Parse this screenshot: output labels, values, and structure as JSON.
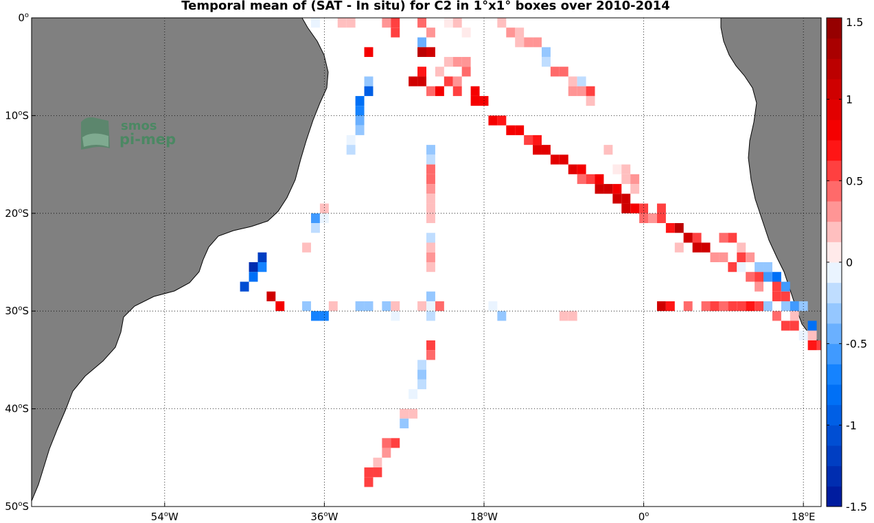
{
  "title": "Temporal mean of (SAT - In situ) for C2 in 1°x1° boxes over 2010-2014",
  "map": {
    "lon_range": [
      -69,
      20
    ],
    "lat_range": [
      -50,
      0
    ],
    "land_color": "#808080",
    "ocean_color": "#ffffff",
    "grid_style": "dotted",
    "lon_ticks": [
      {
        "value": -54,
        "label": "54°W"
      },
      {
        "value": -36,
        "label": "36°W"
      },
      {
        "value": -18,
        "label": "18°W"
      },
      {
        "value": 0,
        "label": "0°"
      },
      {
        "value": 18,
        "label": "18°E"
      }
    ],
    "lat_ticks": [
      {
        "value": 0,
        "label": "0°"
      },
      {
        "value": -10,
        "label": "10°S"
      },
      {
        "value": -20,
        "label": "20°S"
      },
      {
        "value": -30,
        "label": "30°S"
      },
      {
        "value": -40,
        "label": "40°S"
      },
      {
        "value": -50,
        "label": "50°S"
      }
    ]
  },
  "colorbar": {
    "range": [
      -1.5,
      1.5
    ],
    "levels": 24,
    "ticks": [
      {
        "value": 1.5,
        "label": "1.5"
      },
      {
        "value": 1,
        "label": "1"
      },
      {
        "value": 0.5,
        "label": "0.5"
      },
      {
        "value": 0,
        "label": "0"
      },
      {
        "value": -0.5,
        "label": "-0.5"
      },
      {
        "value": -1,
        "label": "-1"
      },
      {
        "value": -1.5,
        "label": "-1.5"
      }
    ]
  },
  "logo": {
    "line1": "smos",
    "line2": "pi-mep",
    "color": "#3e8a5c"
  },
  "chart_data": {
    "type": "heatmap",
    "variable": "SAT - In situ",
    "cells": [
      [
        -37,
        -0.5,
        -0.1
      ],
      [
        -34,
        -0.5,
        0.2
      ],
      [
        -33,
        -0.5,
        0.2
      ],
      [
        -29,
        -0.5,
        0.3
      ],
      [
        -28,
        -0.5,
        0.5
      ],
      [
        -25,
        -0.5,
        0.4
      ],
      [
        -16,
        -0.5,
        0.2
      ],
      [
        -22,
        -0.5,
        0.1
      ],
      [
        -21,
        -0.5,
        0.2
      ],
      [
        -28,
        -1.5,
        0.5
      ],
      [
        -24,
        -1.5,
        0.3
      ],
      [
        -14,
        -1.5,
        0.2
      ],
      [
        -15,
        -1.5,
        0.3
      ],
      [
        -25,
        -2.5,
        -0.5
      ],
      [
        -20,
        -1.5,
        0.1
      ],
      [
        -13,
        -2.5,
        0.3
      ],
      [
        -12,
        -2.5,
        0.3
      ],
      [
        -14,
        -2.5,
        0.2
      ],
      [
        -25,
        -3.5,
        1.2
      ],
      [
        -31,
        -3.5,
        0.8
      ],
      [
        -24,
        -3.5,
        1.0
      ],
      [
        -11,
        -3.5,
        -0.3
      ],
      [
        -11,
        -4.5,
        -0.2
      ],
      [
        -22,
        -4.5,
        0.2
      ],
      [
        -21,
        -4.5,
        0.3
      ],
      [
        -20,
        -4.5,
        0.3
      ],
      [
        -25,
        -5.5,
        0.7
      ],
      [
        -10,
        -5.5,
        0.4
      ],
      [
        -9,
        -5.5,
        0.4
      ],
      [
        -20,
        -5.5,
        0.4
      ],
      [
        -23,
        -5.5,
        0.2
      ],
      [
        -26,
        -6.5,
        1.0
      ],
      [
        -25,
        -6.5,
        1.0
      ],
      [
        -22,
        -6.5,
        0.5
      ],
      [
        -21,
        -6.5,
        0.3
      ],
      [
        -8,
        -6.5,
        0.2
      ],
      [
        -7,
        -6.5,
        -0.2
      ],
      [
        -31,
        -6.5,
        -0.3
      ],
      [
        -24,
        -7.5,
        0.4
      ],
      [
        -23,
        -7.5,
        0.8
      ],
      [
        -21,
        -7.5,
        0.5
      ],
      [
        -19,
        -7.5,
        0.8
      ],
      [
        -8,
        -7.5,
        0.3
      ],
      [
        -7,
        -7.5,
        0.3
      ],
      [
        -6,
        -7.5,
        0.6
      ],
      [
        -31,
        -7.5,
        -0.9
      ],
      [
        -19,
        -8.5,
        0.8
      ],
      [
        -18,
        -8.5,
        0.8
      ],
      [
        -6,
        -8.5,
        0.2
      ],
      [
        -32,
        -8.5,
        -0.8
      ],
      [
        -32,
        -9.5,
        -0.7
      ],
      [
        -17,
        -10.5,
        0.8
      ],
      [
        -16,
        -10.5,
        0.7
      ],
      [
        -32,
        -10.5,
        -0.5
      ],
      [
        -15,
        -11.5,
        0.8
      ],
      [
        -14,
        -11.5,
        0.8
      ],
      [
        -32,
        -11.5,
        -0.3
      ],
      [
        -13,
        -12.5,
        0.6
      ],
      [
        -12,
        -12.5,
        0.7
      ],
      [
        -33,
        -12.5,
        -0.1
      ],
      [
        -12,
        -13.5,
        0.9
      ],
      [
        -11,
        -13.5,
        0.9
      ],
      [
        -33,
        -13.5,
        -0.2
      ],
      [
        -24,
        -13.5,
        -0.3
      ],
      [
        -4,
        -13.5,
        0.2
      ],
      [
        -10,
        -14.5,
        0.9
      ],
      [
        -9,
        -14.5,
        0.9
      ],
      [
        -24,
        -14.5,
        -0.2
      ],
      [
        -8,
        -15.5,
        0.9
      ],
      [
        -7,
        -15.5,
        0.8
      ],
      [
        -3,
        -15.5,
        0.1
      ],
      [
        -2,
        -15.5,
        0.2
      ],
      [
        -24,
        -15.5,
        0.4
      ],
      [
        -7,
        -16.5,
        0.4
      ],
      [
        -6,
        -16.5,
        0.5
      ],
      [
        -5,
        -16.5,
        0.8
      ],
      [
        -2,
        -16.5,
        0.2
      ],
      [
        -1,
        -16.5,
        0.3
      ],
      [
        -24,
        -16.5,
        0.4
      ],
      [
        -5,
        -17.5,
        1.0
      ],
      [
        -4,
        -17.5,
        1.0
      ],
      [
        -3,
        -17.5,
        0.8
      ],
      [
        -1,
        -17.5,
        0.2
      ],
      [
        -24,
        -17.5,
        0.3
      ],
      [
        -3,
        -18.5,
        1.0
      ],
      [
        -2,
        -18.5,
        1.0
      ],
      [
        -24,
        -18.5,
        0.2
      ],
      [
        -2,
        -19.5,
        1.0
      ],
      [
        -1,
        -19.5,
        0.8
      ],
      [
        0,
        -19.5,
        0.5
      ],
      [
        2,
        -19.5,
        0.5
      ],
      [
        -24,
        -19.5,
        0.2
      ],
      [
        -36,
        -19.5,
        0.2
      ],
      [
        0,
        -20.5,
        0.4
      ],
      [
        1,
        -20.5,
        0.3
      ],
      [
        2,
        -20.5,
        0.5
      ],
      [
        -24,
        -20.5,
        0.2
      ],
      [
        -37,
        -20.5,
        -0.6
      ],
      [
        -36,
        -20.5,
        -0.1
      ],
      [
        3,
        -21.5,
        0.7
      ],
      [
        4,
        -21.5,
        1.2
      ],
      [
        -37,
        -21.5,
        -0.2
      ],
      [
        5,
        -22.5,
        1.0
      ],
      [
        6,
        -22.5,
        0.5
      ],
      [
        -24,
        -22.5,
        -0.2
      ],
      [
        5,
        -22.5,
        1.0
      ],
      [
        9,
        -22.5,
        0.4
      ],
      [
        10,
        -22.5,
        0.5
      ],
      [
        6,
        -23.5,
        1.0
      ],
      [
        7,
        -23.5,
        1.0
      ],
      [
        -24,
        -23.5,
        0.2
      ],
      [
        11,
        -23.5,
        0.2
      ],
      [
        4,
        -23.5,
        0.2
      ],
      [
        -38,
        -23.5,
        0.2
      ],
      [
        8,
        -24.5,
        0.3
      ],
      [
        9,
        -24.5,
        0.3
      ],
      [
        11,
        -24.5,
        0.5
      ],
      [
        12,
        -24.5,
        0.3
      ],
      [
        -24,
        -24.5,
        0.3
      ],
      [
        -43,
        -24.5,
        -1.2
      ],
      [
        10,
        -25.5,
        0.6
      ],
      [
        11,
        -25.5,
        -0.1
      ],
      [
        13,
        -25.5,
        -0.3
      ],
      [
        14,
        -25.5,
        -0.3
      ],
      [
        -24,
        -25.5,
        0.2
      ],
      [
        -44,
        -25.5,
        -1.3
      ],
      [
        -43,
        -25.5,
        -0.7
      ],
      [
        12,
        -26.5,
        0.4
      ],
      [
        13,
        -26.5,
        0.6
      ],
      [
        14,
        -26.5,
        -0.6
      ],
      [
        15,
        -26.5,
        -0.8
      ],
      [
        -44,
        -26.5,
        -0.8
      ],
      [
        13,
        -27.5,
        0.3
      ],
      [
        15,
        -27.5,
        0.5
      ],
      [
        16,
        -27.5,
        -0.6
      ],
      [
        -45,
        -27.5,
        -1.1
      ],
      [
        15,
        -28.5,
        0.5
      ],
      [
        16,
        -28.5,
        0.5
      ],
      [
        -42,
        -28.5,
        1.0
      ],
      [
        -24,
        -28.5,
        -0.3
      ],
      [
        2,
        -29.5,
        1.0
      ],
      [
        3,
        -29.5,
        0.7
      ],
      [
        5,
        -29.5,
        0.4
      ],
      [
        7,
        -29.5,
        0.4
      ],
      [
        8,
        -29.5,
        0.6
      ],
      [
        9,
        -29.5,
        0.4
      ],
      [
        10,
        -29.5,
        0.5
      ],
      [
        11,
        -29.5,
        0.5
      ],
      [
        12,
        -29.5,
        0.7
      ],
      [
        13,
        -29.5,
        0.5
      ],
      [
        14,
        -29.5,
        -0.3
      ],
      [
        16,
        -29.5,
        -0.3
      ],
      [
        17,
        -29.5,
        -0.6
      ],
      [
        18,
        -29.5,
        -0.3
      ],
      [
        -41,
        -29.5,
        0.8
      ],
      [
        -38,
        -29.5,
        -0.3
      ],
      [
        -35,
        -29.5,
        0.2
      ],
      [
        -32,
        -29.5,
        -0.3
      ],
      [
        -31,
        -29.5,
        -0.3
      ],
      [
        -29,
        -29.5,
        -0.3
      ],
      [
        -28,
        -29.5,
        0.2
      ],
      [
        -25,
        -29.5,
        0.2
      ],
      [
        -23,
        -29.5,
        0.4
      ],
      [
        -24,
        -29.5,
        -0.1
      ],
      [
        -17,
        -29.5,
        -0.1
      ],
      [
        -37,
        -30.5,
        -0.7
      ],
      [
        -36,
        -30.5,
        -0.7
      ],
      [
        -28,
        -30.5,
        -0.1
      ],
      [
        -24,
        -30.5,
        -0.2
      ],
      [
        -16,
        -30.5,
        -0.3
      ],
      [
        -9,
        -30.5,
        0.2
      ],
      [
        -8,
        -30.5,
        0.2
      ],
      [
        15,
        -30.5,
        0.4
      ],
      [
        17,
        -30.5,
        0.2
      ],
      [
        16,
        -31.5,
        0.5
      ],
      [
        17,
        -31.5,
        0.5
      ],
      [
        19,
        -31.5,
        -0.8
      ],
      [
        18,
        -32.5,
        -0.1
      ],
      [
        19,
        -32.5,
        0.2
      ],
      [
        19,
        -33.5,
        0.7
      ],
      [
        20,
        -33.5,
        0.6
      ],
      [
        -24,
        -33.5,
        0.5
      ],
      [
        -24,
        -34.5,
        0.4
      ],
      [
        -25,
        -35.5,
        -0.2
      ],
      [
        -25,
        -36.5,
        -0.3
      ],
      [
        -25,
        -37.5,
        -0.2
      ],
      [
        -26,
        -38.5,
        -0.1
      ],
      [
        -27,
        -40.5,
        0.2
      ],
      [
        -26,
        -40.5,
        0.2
      ],
      [
        -27,
        -41.5,
        -0.3
      ],
      [
        -29,
        -43.5,
        0.4
      ],
      [
        -28,
        -43.5,
        0.5
      ],
      [
        -29,
        -44.5,
        0.3
      ],
      [
        -30,
        -45.5,
        0.2
      ],
      [
        -31,
        -46.5,
        0.6
      ],
      [
        -30,
        -46.5,
        0.5
      ],
      [
        -31,
        -47.5,
        0.6
      ]
    ]
  }
}
